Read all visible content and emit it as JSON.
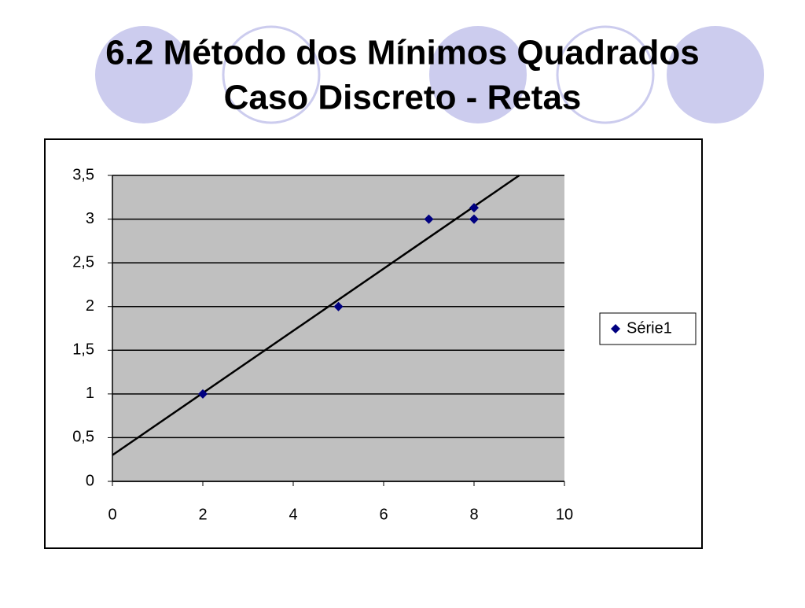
{
  "title": "6.2 Método dos Mínimos Quadrados",
  "subtitle": "Caso Discreto - Retas",
  "chart_data": {
    "type": "scatter",
    "series": [
      {
        "name": "Série1",
        "color": "#000080",
        "x": [
          2,
          5,
          7,
          8,
          8
        ],
        "values": [
          1,
          2,
          3,
          3.13,
          3
        ]
      }
    ],
    "trendline": {
      "color": "#000000",
      "x": [
        0,
        9.0
      ],
      "values": [
        0.3,
        3.5
      ]
    },
    "xlim": [
      0,
      10
    ],
    "xticks": [
      0,
      2,
      4,
      6,
      8,
      10
    ],
    "ylim": [
      0,
      3.5
    ],
    "yticks": [
      0,
      {
        "value": 0.5,
        "label": "0,5"
      },
      1,
      {
        "value": 1.5,
        "label": "1,5"
      },
      2,
      {
        "value": 2.5,
        "label": "2,5"
      },
      3,
      {
        "value": 3.5,
        "label": "3,5"
      }
    ],
    "grid": true,
    "legend": "right"
  }
}
